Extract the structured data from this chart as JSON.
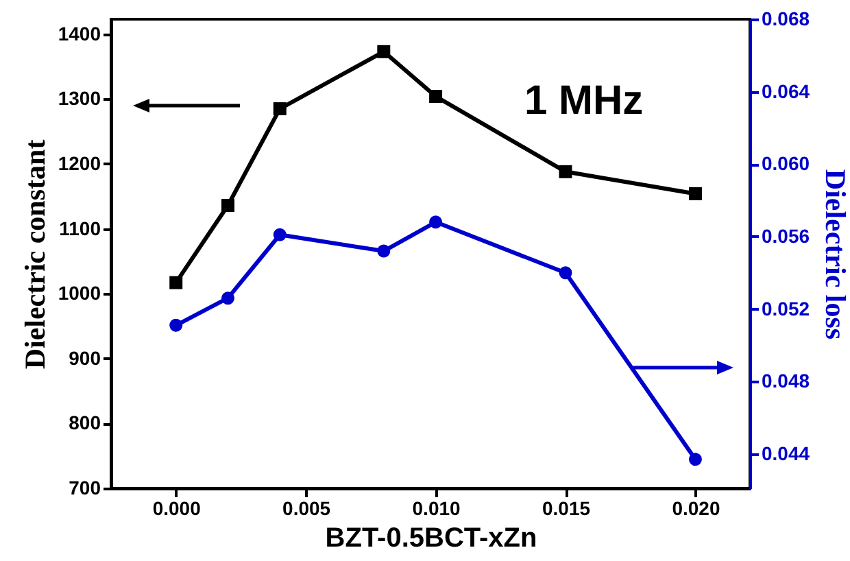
{
  "chart_data": {
    "type": "line",
    "xlabel": "BZT-0.5BCT-xZn",
    "ylabel": "Dielectric constant",
    "y2label": "Dielectric loss",
    "annotations": [
      "1 MHz"
    ],
    "x": [
      0.0,
      0.002,
      0.004,
      0.008,
      0.01,
      0.015,
      0.02
    ],
    "series": [
      {
        "color": "#000000",
        "marker": "square",
        "values": [
          1017,
          1136,
          1285,
          1373,
          1304,
          1188,
          1154
        ]
      },
      {
        "color": "#0000cc",
        "marker": "circle",
        "axis": "y2",
        "values": [
          0.0511,
          0.0526,
          0.0561,
          0.0552,
          0.0568,
          0.054,
          0.0437
        ]
      }
    ],
    "xlim": [
      -0.0025,
      0.0221
    ],
    "xticks": [
      {
        "value": 0,
        "label": "0.000"
      },
      {
        "value": 0.005,
        "label": "0.005"
      },
      {
        "value": 0.01,
        "label": "0.010"
      },
      {
        "value": 0.015,
        "label": "0.015"
      },
      {
        "value": 0.02,
        "label": "0.020"
      }
    ],
    "ylim": [
      700,
      1423
    ],
    "yticks": [
      700,
      800,
      900,
      1000,
      1100,
      1200,
      1300,
      1400
    ],
    "y2lim": [
      0.0421,
      0.068
    ],
    "y2ticks": [
      0.044,
      0.048,
      0.052,
      0.056,
      {
        "value": 0.06,
        "label": "0.060"
      },
      0.064,
      0.068
    ],
    "grid": false
  }
}
